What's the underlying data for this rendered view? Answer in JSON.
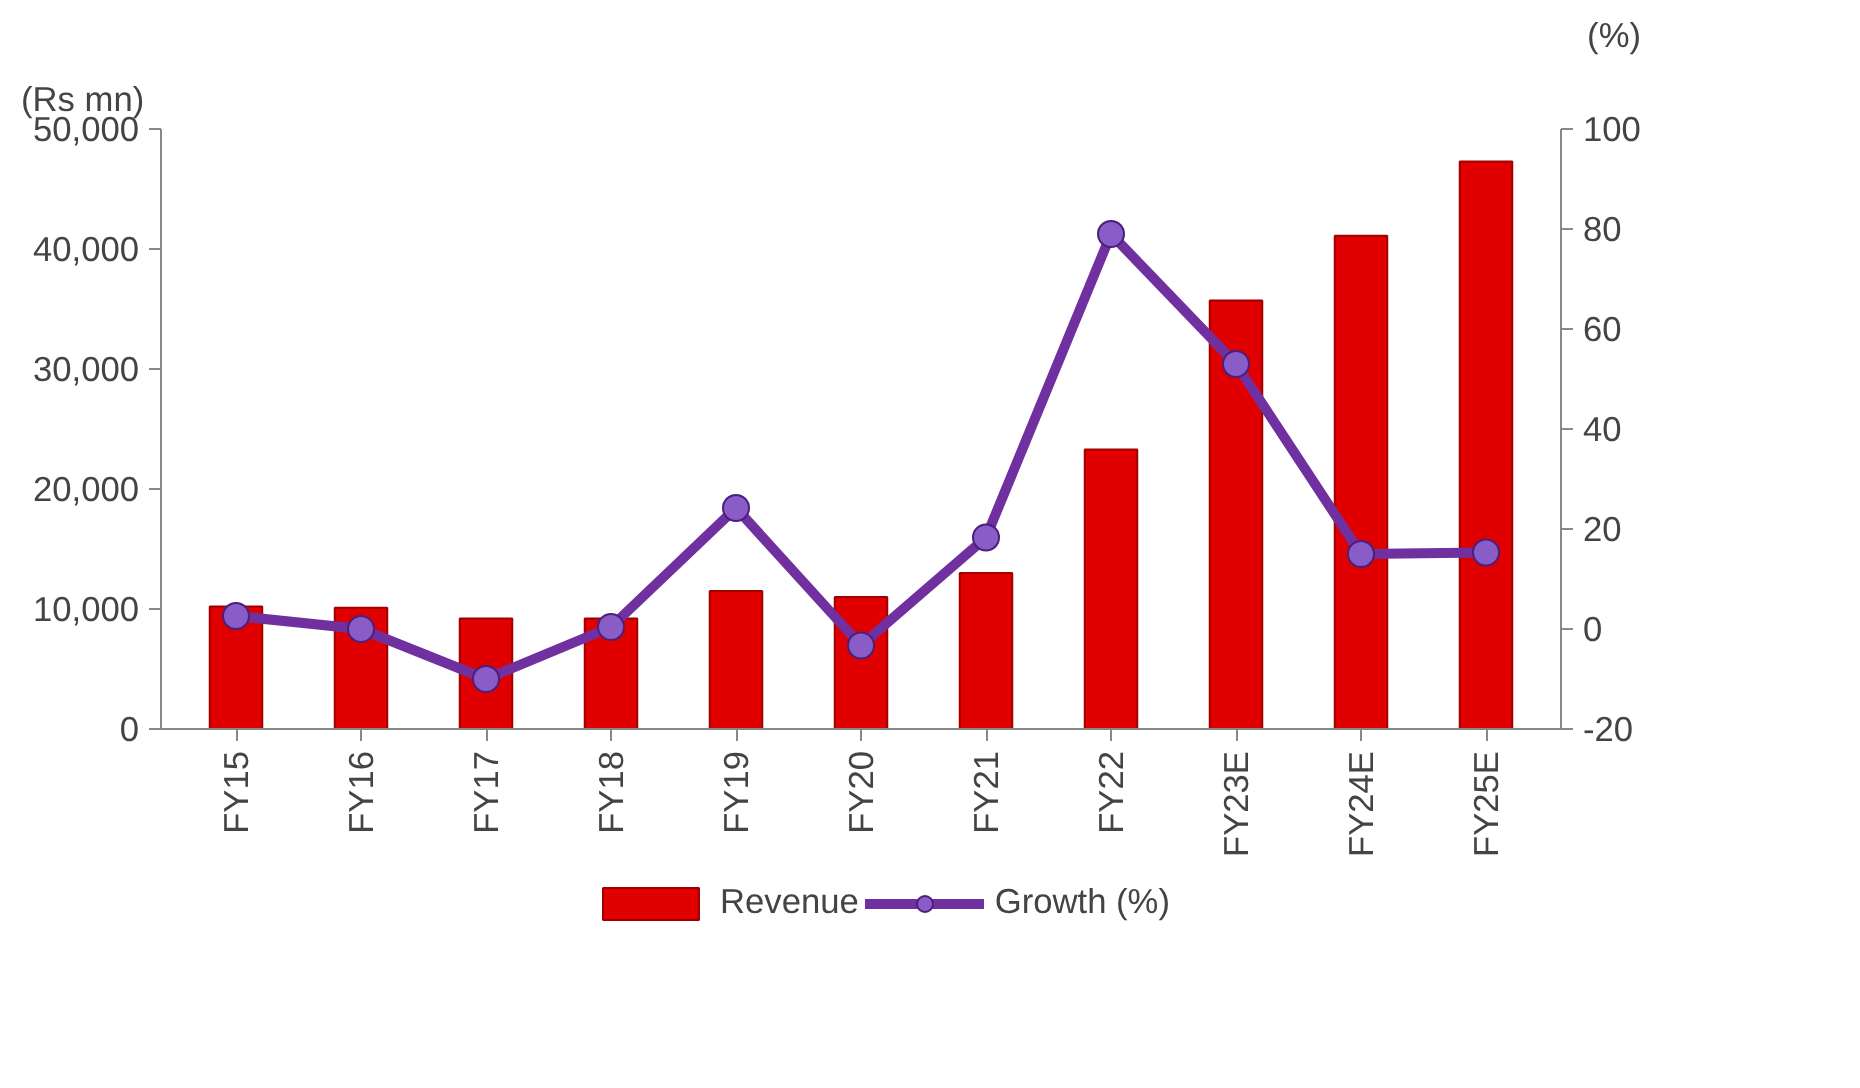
{
  "chart_data": {
    "type": "bar",
    "ylabel": "(Rs mn)",
    "y2label": "(%)",
    "categories": [
      "FY15",
      "FY16",
      "FY17",
      "FY18",
      "FY19",
      "FY20",
      "FY21",
      "FY22",
      "FY23E",
      "FY24E",
      "FY25E"
    ],
    "series": [
      {
        "name": "Revenue",
        "color": "#e00000",
        "values": [
          10200,
          10100,
          9200,
          9200,
          11500,
          11000,
          13000,
          23300,
          35700,
          41100,
          47300
        ]
      },
      {
        "name": "Growth (%)",
        "type": "line",
        "axis": "y2",
        "color": "#7030a0",
        "marker": "circle",
        "values": [
          2.6,
          0,
          -10,
          0.4,
          24.2,
          -3.3,
          18.3,
          79,
          53,
          15,
          15.3
        ]
      }
    ],
    "ylim": [
      0,
      50000
    ],
    "yticks": [
      {
        "value": 0,
        "label": "0"
      },
      {
        "value": 10000,
        "label": "10,000"
      },
      {
        "value": 20000,
        "label": "20,000"
      },
      {
        "value": 30000,
        "label": "30,000"
      },
      {
        "value": 40000,
        "label": "40,000"
      },
      {
        "value": 50000,
        "label": "50,000"
      }
    ],
    "y2lim": [
      -20,
      100
    ],
    "y2ticks": [
      -20,
      0,
      20,
      40,
      60,
      80,
      100
    ],
    "legend": "bottom",
    "grid": false
  }
}
